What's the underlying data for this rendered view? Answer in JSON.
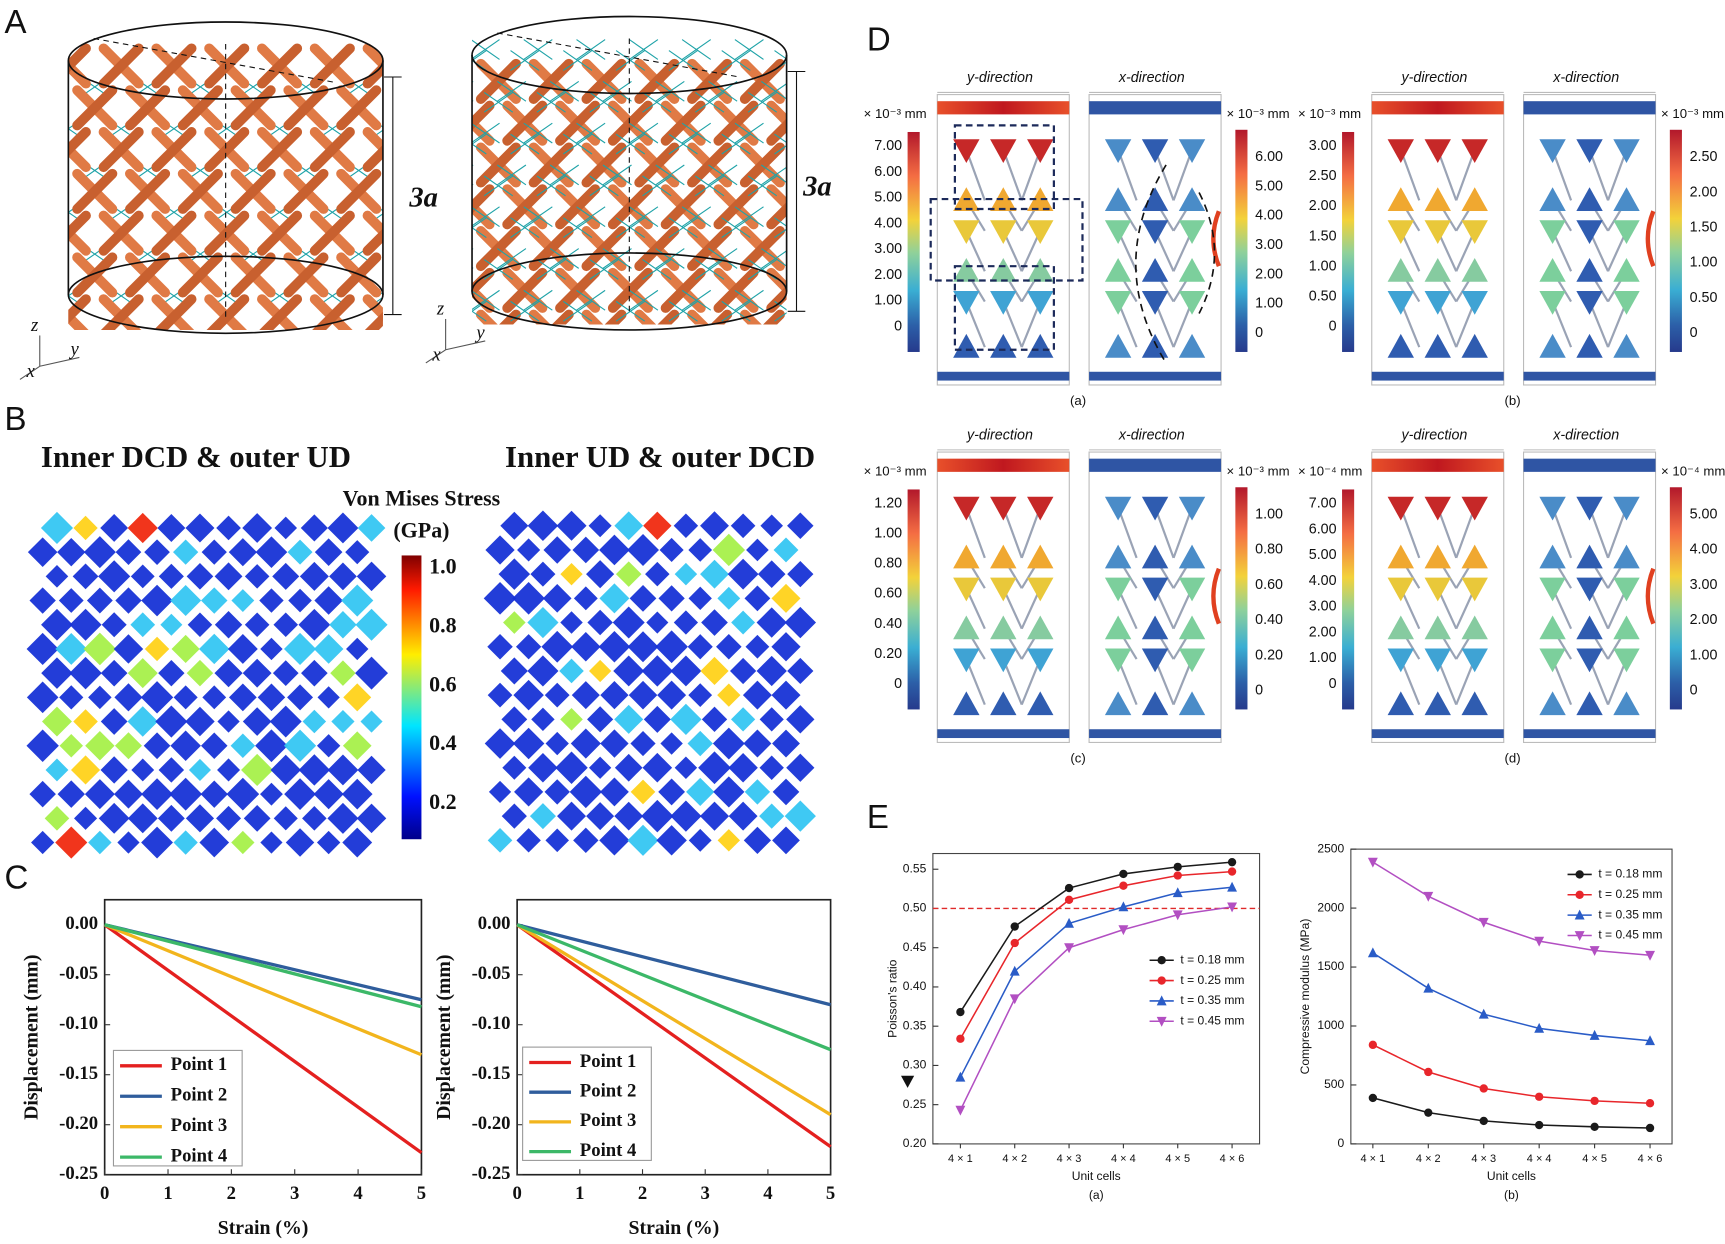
{
  "panel_A": {
    "label": "A",
    "dimension_label_left": "3a",
    "dimension_label_right": "3a",
    "axis_labels_left": [
      "z",
      "x",
      "y"
    ],
    "axis_labels_right": [
      "z",
      "x",
      "y"
    ]
  },
  "panel_B": {
    "label": "B",
    "titles": [
      "Inner DCD & outer UD",
      "Inner UD & outer DCD"
    ],
    "colorbar_title": [
      "Von Mises Stress",
      "(GPa)"
    ],
    "colorbar_ticks": [
      "1.0",
      "0.8",
      "0.6",
      "0.4",
      "0.2"
    ]
  },
  "panel_C": {
    "label": "C"
  },
  "panel_D": {
    "label": "D",
    "subfigures": [
      {
        "caption": "(a)",
        "left_title": "y-direction",
        "right_title": "x-direction",
        "left_unit": "× 10⁻³ mm",
        "left_ticks": [
          "7.00",
          "6.00",
          "5.00",
          "4.00",
          "3.00",
          "2.00",
          "1.00",
          "0"
        ],
        "right_unit": "× 10⁻³ mm",
        "right_ticks": [
          "6.00",
          "5.00",
          "4.00",
          "3.00",
          "2.00",
          "1.00",
          "0"
        ]
      },
      {
        "caption": "(b)",
        "left_title": "y-direction",
        "right_title": "x-direction",
        "left_unit": "× 10⁻³ mm",
        "left_ticks": [
          "3.00",
          "2.50",
          "2.00",
          "1.50",
          "1.00",
          "0.50",
          "0"
        ],
        "right_unit": "× 10⁻³ mm",
        "right_ticks": [
          "2.50",
          "2.00",
          "1.50",
          "1.00",
          "0.50",
          "0"
        ]
      },
      {
        "caption": "(c)",
        "left_title": "y-direction",
        "right_title": "x-direction",
        "left_unit": "× 10⁻³ mm",
        "left_ticks": [
          "1.20",
          "1.00",
          "0.80",
          "0.60",
          "0.40",
          "0.20",
          "0"
        ],
        "right_unit": "× 10⁻³ mm",
        "right_ticks": [
          "1.00",
          "0.80",
          "0.60",
          "0.40",
          "0.20",
          "0"
        ]
      },
      {
        "caption": "(d)",
        "left_title": "y-direction",
        "right_title": "x-direction",
        "left_unit": "× 10⁻⁴ mm",
        "left_ticks": [
          "7.00",
          "6.00",
          "5.00",
          "4.00",
          "3.00",
          "2.00",
          "1.00",
          "0"
        ],
        "right_unit": "× 10⁻⁴ mm",
        "right_ticks": [
          "5.00",
          "4.00",
          "3.00",
          "2.00",
          "1.00",
          "0"
        ]
      }
    ]
  },
  "panel_E": {
    "label": "E"
  },
  "chart_data": [
    {
      "type": "line",
      "x_label": "Strain (%)",
      "y_label": "Displacement (mm)",
      "x": [
        0,
        5
      ],
      "xlim": [
        0,
        5
      ],
      "xticks": [
        0,
        1,
        2,
        3,
        4,
        5
      ],
      "ylim": [
        -0.25,
        0.025
      ],
      "yticks": [
        {
          "value": 0,
          "label": "0.00"
        },
        -0.05,
        {
          "value": -0.1,
          "label": "-0.10"
        },
        -0.15,
        {
          "value": -0.2,
          "label": "-0.20"
        },
        -0.25
      ],
      "series": [
        {
          "name": "Point 1",
          "color": "#e4201f",
          "values": [
            0,
            -0.228
          ]
        },
        {
          "name": "Point 2",
          "color": "#2f5d9c",
          "values": [
            0,
            -0.075
          ]
        },
        {
          "name": "Point 3",
          "color": "#f2b51d",
          "values": [
            0,
            -0.13
          ]
        },
        {
          "name": "Point 4",
          "color": "#3cb868",
          "values": [
            0,
            -0.082
          ]
        }
      ]
    },
    {
      "type": "line",
      "x_label": "Strain (%)",
      "y_label": "Displacement (mm)",
      "x": [
        0,
        5
      ],
      "xlim": [
        0,
        5
      ],
      "xticks": [
        0,
        1,
        2,
        3,
        4,
        5
      ],
      "ylim": [
        -0.25,
        0.025
      ],
      "yticks": [
        {
          "value": 0,
          "label": "0.00"
        },
        -0.05,
        {
          "value": -0.1,
          "label": "-0.10"
        },
        -0.15,
        {
          "value": -0.2,
          "label": "-0.20"
        },
        -0.25
      ],
      "series": [
        {
          "name": "Point 1",
          "color": "#e4201f",
          "values": [
            0,
            -0.222
          ]
        },
        {
          "name": "Point 2",
          "color": "#2f5d9c",
          "values": [
            0,
            -0.08
          ]
        },
        {
          "name": "Point 3",
          "color": "#f2b51d",
          "values": [
            0,
            -0.19
          ]
        },
        {
          "name": "Point 4",
          "color": "#3cb868",
          "values": [
            0,
            -0.125
          ]
        }
      ]
    },
    {
      "type": "line",
      "caption": "(a)",
      "x_label": "Unit cells",
      "y_label": "Poisson's ratio",
      "categories": [
        "4 × 1",
        "4 × 2",
        "4 × 3",
        "4 × 4",
        "4 × 5",
        "4 × 6"
      ],
      "ylim": [
        0.2,
        0.57
      ],
      "yticks": [
        {
          "value": 0.2,
          "label": "0.20"
        },
        0.25,
        {
          "value": 0.3,
          "label": "0.30"
        },
        0.35,
        {
          "value": 0.4,
          "label": "0.40"
        },
        0.45,
        {
          "value": 0.5,
          "label": "0.50"
        },
        0.55
      ],
      "reference_line": 0.5,
      "reference_color": "#e02a2a",
      "series": [
        {
          "name": "t = 0.18 mm",
          "color": "#1a1a1a",
          "marker": "circle",
          "values": [
            0.368,
            0.477,
            0.526,
            0.544,
            0.553,
            0.559
          ]
        },
        {
          "name": "t = 0.25 mm",
          "color": "#e8262b",
          "marker": "circle",
          "values": [
            0.334,
            0.456,
            0.511,
            0.529,
            0.542,
            0.547
          ]
        },
        {
          "name": "t = 0.35 mm",
          "color": "#2a5cc7",
          "marker": "triangle-up",
          "values": [
            0.285,
            0.42,
            0.481,
            0.502,
            0.52,
            0.527
          ]
        },
        {
          "name": "t = 0.45 mm",
          "color": "#b24fc2",
          "marker": "triangle-down",
          "values": [
            0.243,
            0.385,
            0.45,
            0.473,
            0.492,
            0.502
          ]
        }
      ]
    },
    {
      "type": "line",
      "caption": "(b)",
      "x_label": "Unit cells",
      "y_label": "Compressive modulus (MPa)",
      "categories": [
        "4 × 1",
        "4 × 2",
        "4 × 3",
        "4 × 4",
        "4 × 5",
        "4 × 6"
      ],
      "ylim": [
        0,
        2500
      ],
      "yticks": [
        0,
        500,
        1000,
        1500,
        2000,
        2500
      ],
      "series": [
        {
          "name": "t = 0.18 mm",
          "color": "#1a1a1a",
          "marker": "circle",
          "values": [
            390,
            265,
            195,
            160,
            145,
            135
          ]
        },
        {
          "name": "t = 0.25 mm",
          "color": "#e8262b",
          "marker": "circle",
          "values": [
            840,
            610,
            470,
            400,
            365,
            345
          ]
        },
        {
          "name": "t = 0.35 mm",
          "color": "#2a5cc7",
          "marker": "triangle-up",
          "values": [
            1620,
            1320,
            1100,
            980,
            920,
            875
          ]
        },
        {
          "name": "t = 0.45 mm",
          "color": "#b24fc2",
          "marker": "triangle-down",
          "values": [
            2390,
            2100,
            1880,
            1720,
            1640,
            1600
          ]
        }
      ]
    }
  ]
}
